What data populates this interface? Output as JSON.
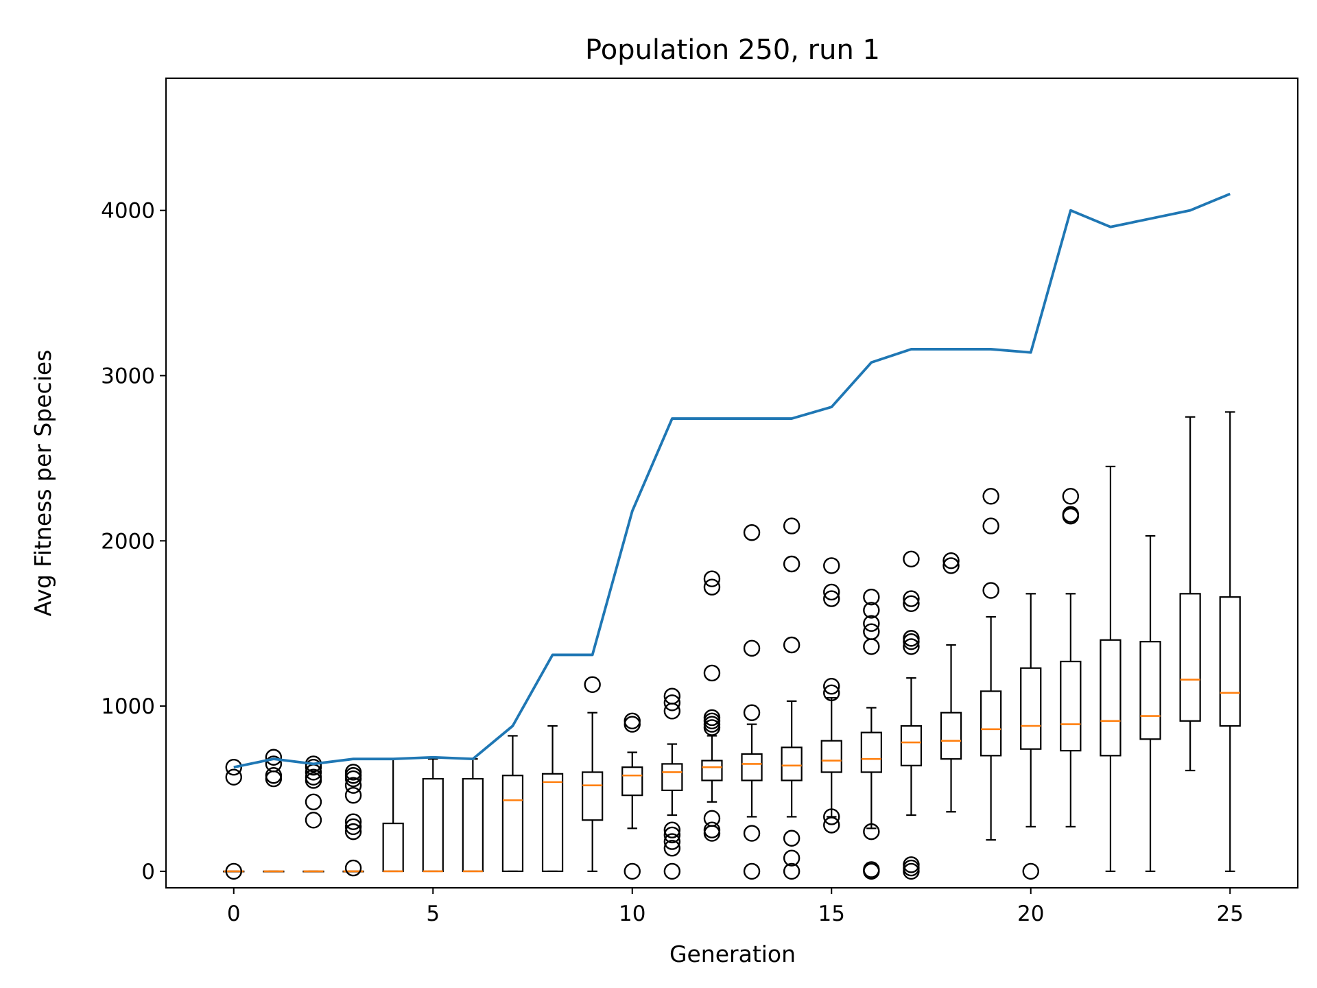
{
  "chart_data": {
    "type": "box",
    "title": "Population 250, run 1",
    "xlabel": "Generation",
    "ylabel": "Avg Fitness per Species",
    "xlim": [
      -1.7,
      26.7
    ],
    "ylim": [
      -100,
      4800
    ],
    "xticks": [
      0,
      5,
      10,
      15,
      20,
      25
    ],
    "yticks": [
      0,
      1000,
      2000,
      3000,
      4000
    ],
    "colors": {
      "line": "#1f77b4",
      "median": "#ff7f0e",
      "box": "#000000"
    },
    "boxes": [
      {
        "x": 0,
        "whislo": 0,
        "q1": 0,
        "med": 0,
        "q3": 0,
        "whishi": 0,
        "fliers": [
          0,
          570,
          630
        ]
      },
      {
        "x": 1,
        "whislo": 0,
        "q1": 0,
        "med": 0,
        "q3": 0,
        "whishi": 0,
        "fliers": [
          560,
          580,
          650,
          690
        ]
      },
      {
        "x": 2,
        "whislo": 0,
        "q1": 0,
        "med": 0,
        "q3": 0,
        "whishi": 0,
        "fliers": [
          310,
          420,
          550,
          570,
          600,
          630,
          650
        ]
      },
      {
        "x": 3,
        "whislo": 0,
        "q1": 0,
        "med": 0,
        "q3": 0,
        "whishi": 0,
        "fliers": [
          20,
          240,
          270,
          300,
          460,
          520,
          560,
          580,
          600
        ]
      },
      {
        "x": 4,
        "whislo": 0,
        "q1": 0,
        "med": 0,
        "q3": 290,
        "whishi": 680,
        "fliers": []
      },
      {
        "x": 5,
        "whislo": 0,
        "q1": 0,
        "med": 0,
        "q3": 560,
        "whishi": 680,
        "fliers": []
      },
      {
        "x": 6,
        "whislo": 0,
        "q1": 0,
        "med": 0,
        "q3": 560,
        "whishi": 680,
        "fliers": []
      },
      {
        "x": 7,
        "whislo": 0,
        "q1": 0,
        "med": 430,
        "q3": 580,
        "whishi": 820,
        "fliers": []
      },
      {
        "x": 8,
        "whislo": 0,
        "q1": 0,
        "med": 540,
        "q3": 590,
        "whishi": 880,
        "fliers": []
      },
      {
        "x": 9,
        "whislo": 0,
        "q1": 310,
        "med": 520,
        "q3": 600,
        "whishi": 960,
        "fliers": [
          1130
        ]
      },
      {
        "x": 10,
        "whislo": 260,
        "q1": 460,
        "med": 580,
        "q3": 630,
        "whishi": 720,
        "fliers": [
          0,
          890,
          910
        ]
      },
      {
        "x": 11,
        "whislo": 340,
        "q1": 490,
        "med": 600,
        "q3": 650,
        "whishi": 770,
        "fliers": [
          0,
          140,
          180,
          220,
          250,
          970,
          1020,
          1060
        ]
      },
      {
        "x": 12,
        "whislo": 420,
        "q1": 550,
        "med": 630,
        "q3": 670,
        "whishi": 820,
        "fliers": [
          230,
          250,
          320,
          870,
          890,
          910,
          930,
          1200,
          1720,
          1770
        ]
      },
      {
        "x": 13,
        "whislo": 330,
        "q1": 550,
        "med": 650,
        "q3": 710,
        "whishi": 890,
        "fliers": [
          0,
          230,
          960,
          1350,
          2050
        ]
      },
      {
        "x": 14,
        "whislo": 330,
        "q1": 550,
        "med": 640,
        "q3": 750,
        "whishi": 1030,
        "fliers": [
          0,
          80,
          200,
          1370,
          1860,
          2090
        ]
      },
      {
        "x": 15,
        "whislo": 330,
        "q1": 600,
        "med": 670,
        "q3": 790,
        "whishi": 1050,
        "fliers": [
          280,
          330,
          1080,
          1120,
          1650,
          1690,
          1850
        ]
      },
      {
        "x": 16,
        "whislo": 260,
        "q1": 600,
        "med": 680,
        "q3": 840,
        "whishi": 990,
        "fliers": [
          0,
          10,
          240,
          1360,
          1450,
          1500,
          1580,
          1660
        ]
      },
      {
        "x": 17,
        "whislo": 340,
        "q1": 640,
        "med": 780,
        "q3": 880,
        "whishi": 1170,
        "fliers": [
          0,
          20,
          40,
          1360,
          1390,
          1410,
          1620,
          1650,
          1890
        ]
      },
      {
        "x": 18,
        "whislo": 360,
        "q1": 680,
        "med": 790,
        "q3": 960,
        "whishi": 1370,
        "fliers": [
          1850,
          1880
        ]
      },
      {
        "x": 19,
        "whislo": 190,
        "q1": 700,
        "med": 860,
        "q3": 1090,
        "whishi": 1540,
        "fliers": [
          1700,
          2090,
          2270
        ]
      },
      {
        "x": 20,
        "whislo": 270,
        "q1": 740,
        "med": 880,
        "q3": 1230,
        "whishi": 1680,
        "fliers": [
          0
        ]
      },
      {
        "x": 21,
        "whislo": 270,
        "q1": 730,
        "med": 890,
        "q3": 1270,
        "whishi": 1680,
        "fliers": [
          2150,
          2160,
          2270
        ]
      },
      {
        "x": 22,
        "whislo": 0,
        "q1": 700,
        "med": 910,
        "q3": 1400,
        "whishi": 2450,
        "fliers": []
      },
      {
        "x": 23,
        "whislo": 0,
        "q1": 800,
        "med": 940,
        "q3": 1390,
        "whishi": 2030,
        "fliers": []
      },
      {
        "x": 24,
        "whislo": 610,
        "q1": 910,
        "med": 1160,
        "q3": 1680,
        "whishi": 2750,
        "fliers": []
      },
      {
        "x": 25,
        "whislo": 0,
        "q1": 880,
        "med": 1080,
        "q3": 1660,
        "whishi": 2780,
        "fliers": []
      }
    ],
    "line": {
      "x": [
        0,
        1,
        2,
        3,
        4,
        5,
        6,
        7,
        8,
        9,
        10,
        11,
        12,
        13,
        14,
        15,
        16,
        17,
        18,
        19,
        20,
        21,
        22,
        23,
        24,
        25
      ],
      "y": [
        630,
        680,
        650,
        680,
        680,
        690,
        680,
        880,
        1310,
        1310,
        2180,
        2740,
        2740,
        2740,
        2740,
        2810,
        3080,
        3160,
        3160,
        3160,
        3140,
        4000,
        3900,
        3950,
        4000,
        4100
      ]
    }
  }
}
